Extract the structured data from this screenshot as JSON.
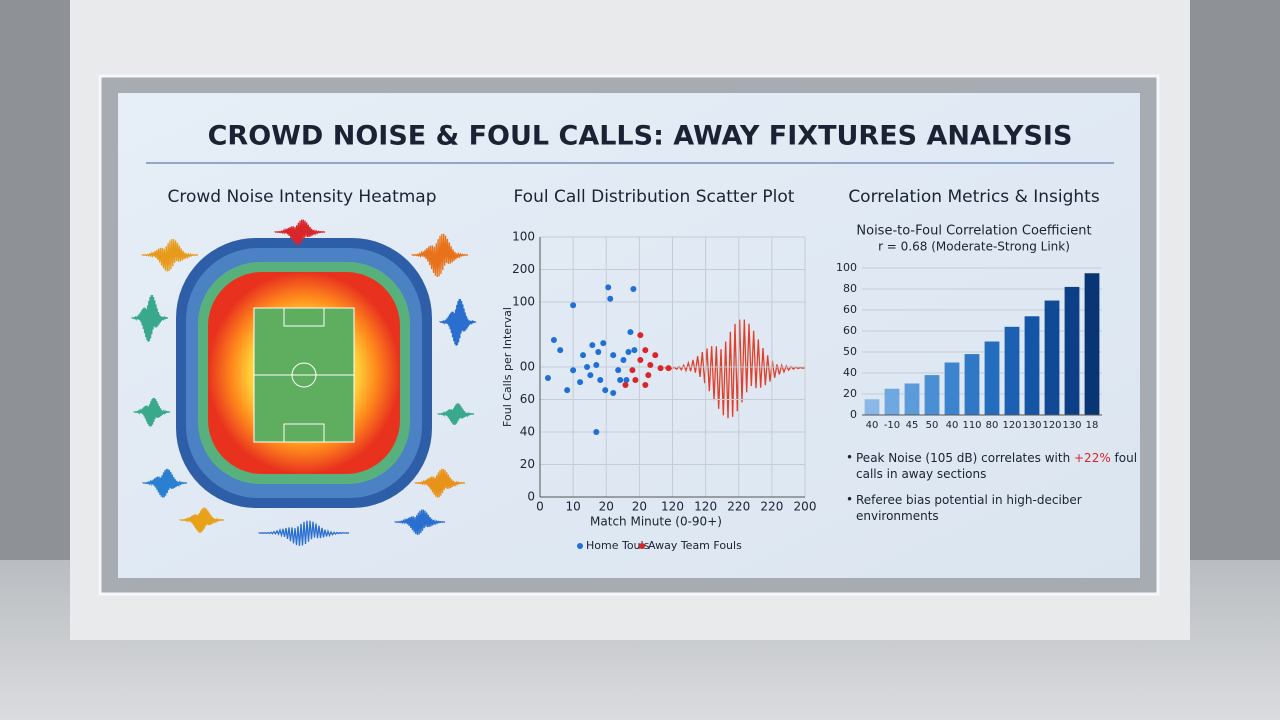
{
  "header": {
    "title": "CROWD NOISE & FOUL CALLS: AWAY FIXTURES ANALYSIS"
  },
  "heatmap": {
    "title": "Crowd Noise Intensity Heatmap"
  },
  "metrics": {
    "title": "Correlation Metrics & Insights",
    "insights": [
      {
        "parts": [
          "Peak Noise (105 dB) correlates with ",
          "+22%",
          " foul",
          "calls in away sections"
        ]
      },
      {
        "parts": [
          "Referee bias potential in high-deciber",
          "environments"
        ]
      }
    ]
  },
  "chart_data": [
    {
      "type": "scatter",
      "title": "Foul Call Distribution Scatter Plot",
      "x_label": "Match Minute (0-90+)",
      "y_label": "Foul Calls per Interval",
      "xlim": [
        0,
        80
      ],
      "ylim": [
        0,
        160
      ],
      "xticks": [
        0,
        10,
        20,
        {
          "value": 30,
          "label": "20"
        },
        {
          "value": 40,
          "label": "120"
        },
        {
          "value": 50,
          "label": "120"
        },
        {
          "value": 60,
          "label": "220"
        },
        {
          "value": 70,
          "label": "220"
        },
        {
          "value": 80,
          "label": "200"
        }
      ],
      "yticks": [
        0,
        20,
        40,
        60,
        {
          "value": 80,
          "label": "00"
        },
        {
          "value": 120,
          "label": "100"
        },
        {
          "value": 140,
          "label": "200"
        },
        {
          "value": 160,
          "label": "100"
        }
      ],
      "grid": true,
      "series": [
        {
          "name": "Home Touls",
          "color": "#1f6fd6",
          "x": [
            4.2,
            6.1,
            2.4,
            10,
            13,
            14.2,
            10,
            12.1,
            8.2,
            15.8,
            17.6,
            19.1,
            17,
            15.2,
            18.2,
            20.6,
            21.2,
            28.2,
            22.1,
            23.6,
            19.7,
            22.1,
            24.2,
            25.2,
            26.7,
            27.3,
            28.5,
            26.1,
            17
          ],
          "values": [
            96.6,
            90.4,
            73.2,
            118,
            87.3,
            80,
            78,
            70.7,
            65.8,
            93.5,
            89.2,
            94.7,
            81.2,
            75,
            72,
            129,
            122,
            128,
            87.3,
            78.1,
            65.8,
            64,
            72,
            84.3,
            89.2,
            101.5,
            90.4,
            72,
            40
          ]
        },
        {
          "name": "Away Team Fouls",
          "color": "#d9262a",
          "x": [
            30.3,
            31.8,
            30.3,
            33.3,
            34.8,
            36.4,
            32.7,
            28.8,
            31.8,
            25.8,
            27.9,
            38.8
          ],
          "values": [
            99.6,
            90.4,
            84.3,
            81.2,
            87.3,
            79.3,
            75,
            72,
            68.9,
            68.9,
            78.1,
            79.3
          ]
        }
      ]
    },
    {
      "type": "bar",
      "title": "Noise-to-Foul Correlation Coefficient",
      "subtitle": "r = 0.68 (Moderate-Strong Link)",
      "categories": [
        "40",
        "-10",
        "45",
        "50",
        "40",
        "110",
        "80",
        "120",
        "130",
        "120",
        "130",
        "18"
      ],
      "values": [
        15,
        25,
        30,
        38,
        50,
        58,
        70,
        84,
        94,
        109,
        122,
        135
      ],
      "colors": [
        "#8ab8e6",
        "#6fa8e0",
        "#5b9bd9",
        "#4a8fd3",
        "#3c84cd",
        "#2f78c6",
        "#246cbd",
        "#1b60b2",
        "#1555a5",
        "#104a96",
        "#0c3f85",
        "#0a3574"
      ],
      "ylim": [
        0,
        140
      ],
      "yticks": [
        0,
        20,
        40,
        {
          "value": 60,
          "label": "50"
        },
        {
          "value": 80,
          "label": "60"
        },
        {
          "value": 100,
          "label": "60"
        },
        {
          "value": 120,
          "label": "80"
        },
        {
          "value": 140,
          "label": "100"
        }
      ],
      "grid": true
    }
  ]
}
